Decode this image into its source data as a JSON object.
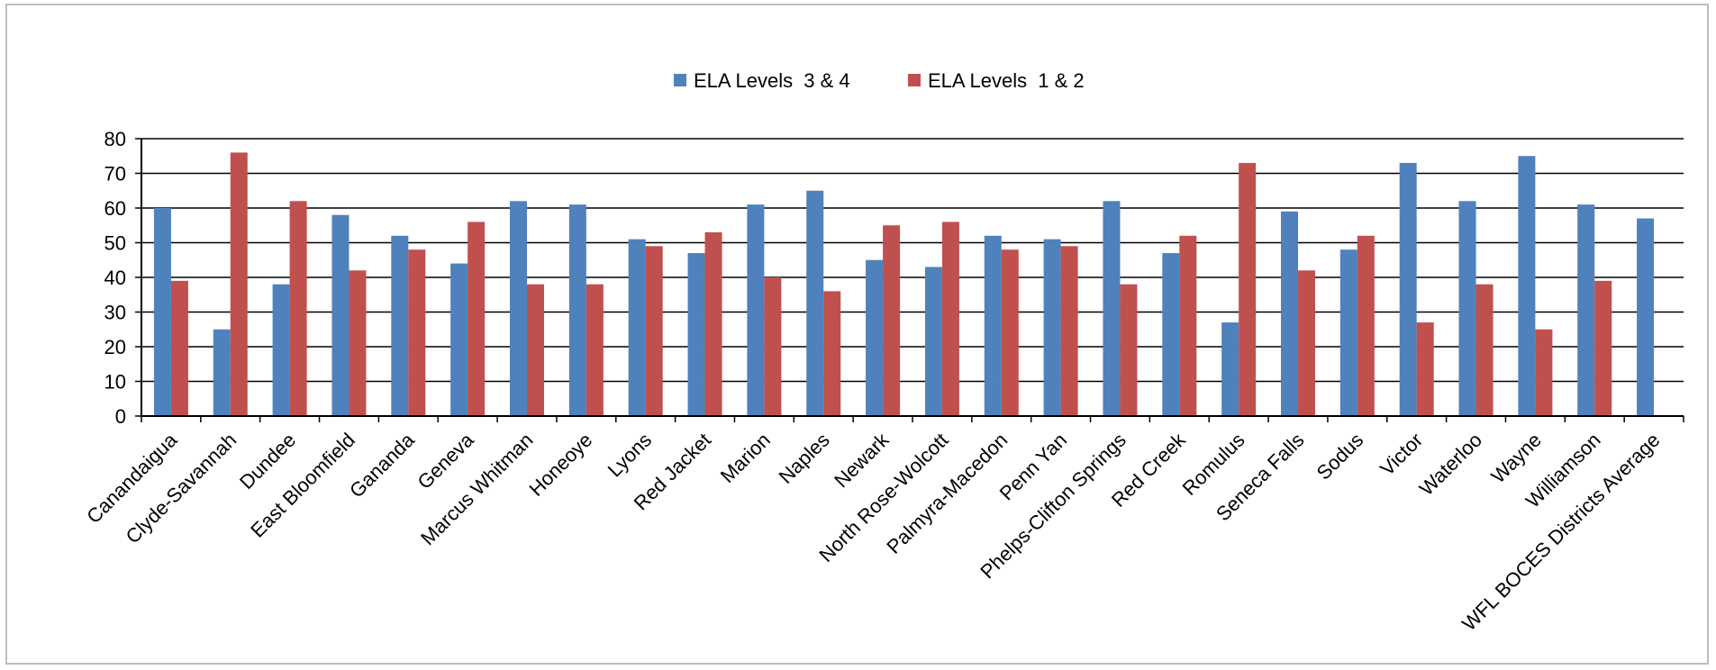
{
  "chart_data": {
    "type": "bar",
    "title": "",
    "xlabel": "",
    "ylabel": "",
    "ylim": [
      0,
      80
    ],
    "yticks": [
      0,
      10,
      20,
      30,
      40,
      50,
      60,
      70,
      80
    ],
    "grid": true,
    "legend_position": "top-center",
    "categories": [
      "Canandaigua",
      "Clyde-Savannah",
      "Dundee",
      "East Bloomfield",
      "Gananda",
      "Geneva",
      "Marcus Whitman",
      "Honeoye",
      "Lyons",
      "Red Jacket",
      "Marion",
      "Naples",
      "Newark",
      "North Rose-Wolcott",
      "Palmyra-Macedon",
      "Penn Yan",
      "Phelps-Clifton Springs",
      "Red Creek",
      "Romulus",
      "Seneca Falls",
      "Sodus",
      "Victor",
      "Waterloo",
      "Wayne",
      "Williamson",
      "WFL BOCES Districts Average"
    ],
    "series": [
      {
        "name": "ELA Levels  3 & 4",
        "color": "#4f81bd",
        "values": [
          60,
          25,
          38,
          58,
          52,
          44,
          62,
          61,
          51,
          47,
          61,
          65,
          45,
          43,
          52,
          51,
          62,
          47,
          27,
          59,
          48,
          73,
          62,
          75,
          61,
          57
        ]
      },
      {
        "name": "ELA Levels  1 & 2",
        "color": "#c0504d",
        "values": [
          39,
          76,
          62,
          42,
          48,
          56,
          38,
          38,
          49,
          53,
          40,
          36,
          55,
          56,
          48,
          49,
          38,
          52,
          73,
          42,
          52,
          27,
          38,
          25,
          39,
          null
        ]
      }
    ]
  }
}
